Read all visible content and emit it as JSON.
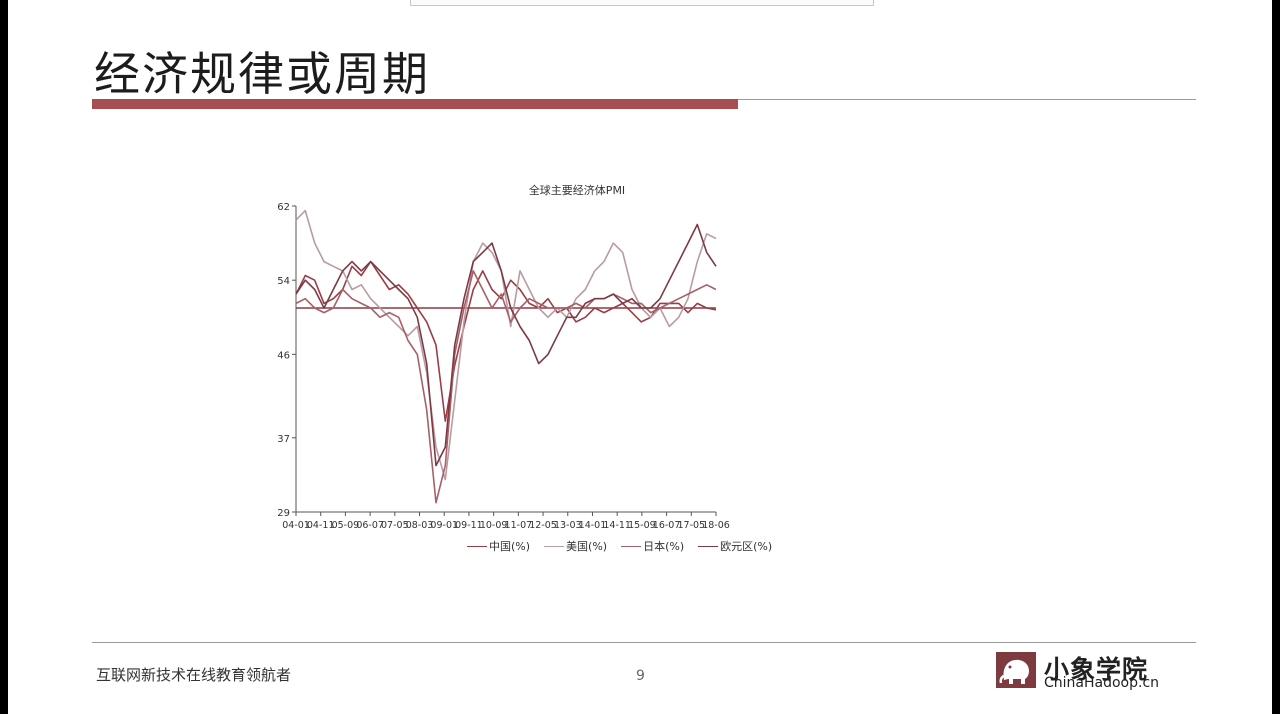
{
  "slide": {
    "title": "经济规律或周期",
    "footer_slogan": "互联网新技术在线教育领航者",
    "page_number": "9",
    "logo_name": "小象学院",
    "logo_url": "ChinaHadoop.cn"
  },
  "colors": {
    "accent_bar": "#a84e52",
    "china": "#9a3e46",
    "usa": "#b89ca2",
    "japan": "#a86068",
    "eurozone": "#7d3a44"
  },
  "chart_data": {
    "type": "line",
    "title": "全球主要经济体PMI",
    "xlabel": "",
    "ylabel": "",
    "ylim": [
      29,
      62
    ],
    "yticks": [
      29,
      37,
      46,
      54,
      62
    ],
    "xticks": [
      "04-01",
      "04-11",
      "05-09",
      "06-07",
      "07-05",
      "08-03",
      "09-01",
      "09-11",
      "10-09",
      "11-07",
      "12-05",
      "13-03",
      "14-01",
      "14-11",
      "15-09",
      "16-07",
      "17-05",
      "18-06"
    ],
    "reference_line": 51,
    "legend_position": "bottom",
    "series": [
      {
        "name": "中国(%)",
        "color": "#9a3e46",
        "values": [
          52.5,
          54.5,
          54,
          51.5,
          52,
          53,
          55.5,
          54.5,
          56,
          54.5,
          53,
          53.5,
          52.5,
          51,
          49.5,
          47,
          38.8,
          44.8,
          49,
          53,
          55,
          53,
          52,
          54,
          53,
          51.5,
          51,
          52,
          50.5,
          51,
          49.5,
          50,
          51,
          50.5,
          51,
          51.5,
          50.5,
          49.5,
          50,
          51.5,
          51.5,
          51.5,
          50.5,
          51.5,
          51,
          50.8
        ]
      },
      {
        "name": "美国(%)",
        "color": "#b89ca2",
        "values": [
          60.5,
          61.5,
          58,
          56,
          55.5,
          55,
          53,
          53.5,
          52,
          51,
          50,
          49,
          48,
          49,
          44,
          36,
          32.5,
          41,
          49.5,
          56,
          58,
          57,
          55,
          49,
          55,
          53,
          51,
          50,
          51,
          50,
          52,
          53,
          55,
          56,
          58,
          57,
          53,
          51,
          50,
          51,
          49,
          50,
          52,
          56,
          59,
          58.5
        ]
      },
      {
        "name": "日本(%)",
        "color": "#a86068",
        "values": [
          51.5,
          52,
          51,
          50.5,
          51,
          53,
          52,
          51.5,
          51,
          50,
          50.5,
          50,
          47.5,
          46,
          40,
          30,
          34,
          46,
          51,
          55,
          53,
          51,
          52.5,
          49.5,
          51,
          52,
          51.5,
          51,
          51,
          51,
          51.5,
          51,
          52,
          52,
          52.5,
          52,
          51.5,
          51.5,
          50.5,
          51,
          51.5,
          52,
          52.5,
          53,
          53.5,
          53
        ]
      },
      {
        "name": "欧元区(%)",
        "color": "#7d3a44",
        "values": [
          52.5,
          54,
          53,
          51,
          53,
          55,
          56,
          55,
          56,
          55,
          54,
          53,
          52,
          50,
          45,
          34,
          36,
          47,
          52,
          56,
          57,
          58,
          55,
          51,
          49,
          47.5,
          45,
          46,
          48,
          50,
          50,
          51.5,
          52,
          52,
          52.5,
          51.5,
          52,
          51,
          51,
          52,
          54,
          56,
          58,
          60,
          57,
          55.5
        ]
      }
    ]
  }
}
